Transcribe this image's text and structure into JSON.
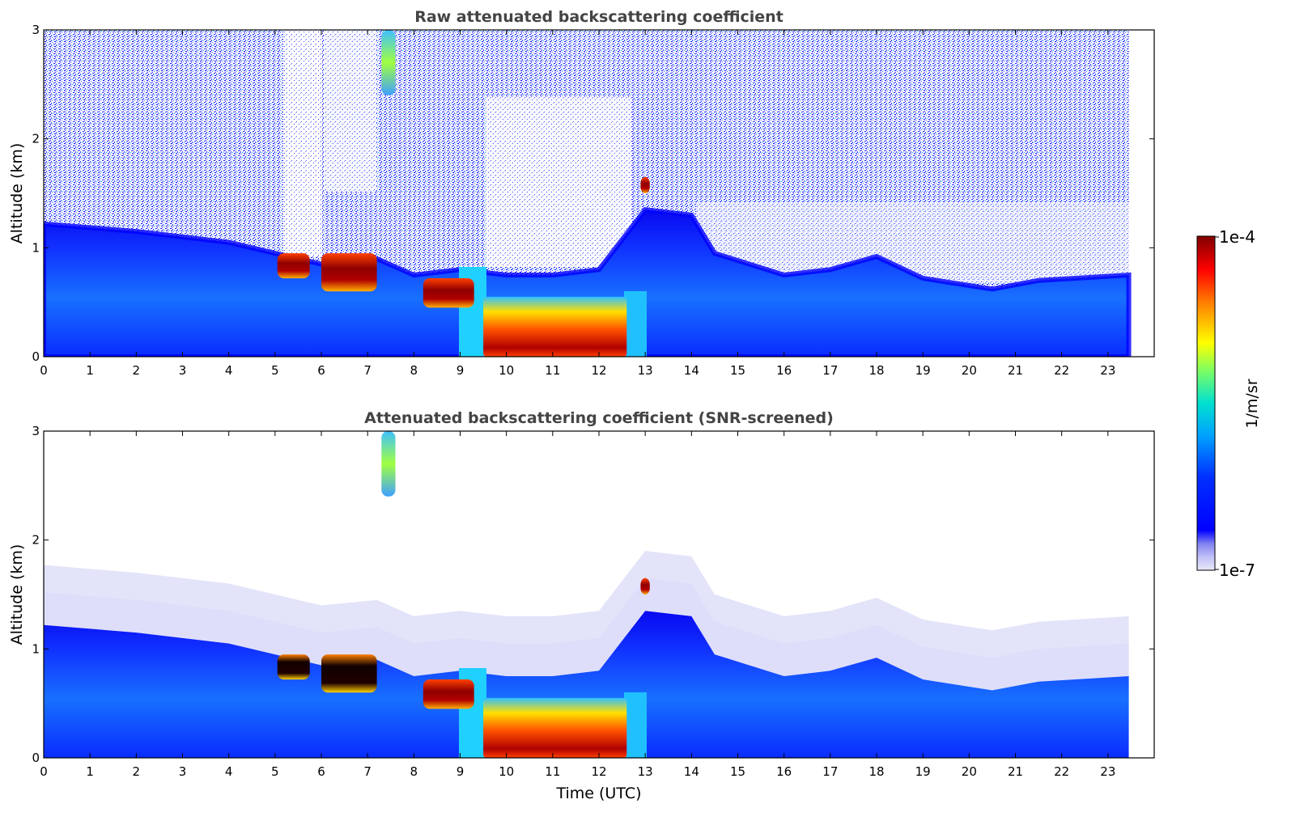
{
  "chart_data": [
    {
      "type": "heatmap",
      "title": "Raw attenuated backscattering coefficient",
      "xlabel": "",
      "ylabel": "Altitude (km)",
      "xlim": [
        0,
        24
      ],
      "ylim": [
        0,
        3
      ],
      "x_ticks": [
        "0",
        "1",
        "2",
        "3",
        "4",
        "5",
        "6",
        "7",
        "8",
        "9",
        "10",
        "11",
        "12",
        "13",
        "14",
        "15",
        "16",
        "17",
        "18",
        "19",
        "20",
        "21",
        "22",
        "23"
      ],
      "y_ticks": [
        "0",
        "1",
        "2",
        "3"
      ],
      "data_extent_x": [
        0,
        23.45
      ],
      "boundary_layer_top_km": [
        [
          0,
          1.22
        ],
        [
          2,
          1.15
        ],
        [
          4,
          1.05
        ],
        [
          5,
          0.95
        ],
        [
          6,
          0.85
        ],
        [
          7.2,
          0.9
        ],
        [
          8,
          0.75
        ],
        [
          9,
          0.8
        ],
        [
          10,
          0.75
        ],
        [
          11,
          0.75
        ],
        [
          12,
          0.8
        ],
        [
          13,
          1.35
        ],
        [
          14,
          1.3
        ],
        [
          14.5,
          0.95
        ],
        [
          16,
          0.75
        ],
        [
          17,
          0.8
        ],
        [
          18,
          0.92
        ],
        [
          19,
          0.72
        ],
        [
          20.5,
          0.62
        ],
        [
          21.5,
          0.7
        ],
        [
          23.45,
          0.75
        ]
      ],
      "features": [
        {
          "name": "cloud",
          "x": [
            5.05,
            5.75
          ],
          "y": [
            0.72,
            0.95
          ],
          "level": "max"
        },
        {
          "name": "cloud",
          "x": [
            6.0,
            7.2
          ],
          "y": [
            0.6,
            0.95
          ],
          "level": "max"
        },
        {
          "name": "cloud",
          "x": [
            8.2,
            9.3
          ],
          "y": [
            0.45,
            0.72
          ],
          "level": "high"
        },
        {
          "name": "fog",
          "x": [
            9.5,
            12.6
          ],
          "y": [
            0.0,
            0.55
          ],
          "level": "max"
        },
        {
          "name": "cloud",
          "x": [
            12.9,
            13.1
          ],
          "y": [
            1.5,
            1.65
          ],
          "level": "high"
        },
        {
          "name": "plume",
          "x": [
            7.3,
            7.6
          ],
          "y": [
            2.4,
            3.0
          ],
          "level": "mid"
        }
      ]
    },
    {
      "type": "heatmap",
      "title": "Attenuated backscattering coefficient (SNR-screened)",
      "xlabel": "Time (UTC)",
      "ylabel": "Altitude (km)",
      "xlim": [
        0,
        24
      ],
      "ylim": [
        0,
        3
      ],
      "x_ticks": [
        "0",
        "1",
        "2",
        "3",
        "4",
        "5",
        "6",
        "7",
        "8",
        "9",
        "10",
        "11",
        "12",
        "13",
        "14",
        "15",
        "16",
        "17",
        "18",
        "19",
        "20",
        "21",
        "22",
        "23"
      ],
      "y_ticks": [
        "0",
        "1",
        "2",
        "3"
      ],
      "data_extent_x": [
        0,
        23.45
      ]
    }
  ],
  "colorbar": {
    "min_label": "1e-7",
    "max_label": "1e-4",
    "label": "1/m/sr",
    "colormap": "jet",
    "colors": [
      "#e8e8f8",
      "#9a9af0",
      "#0000ff",
      "#00a0ff",
      "#00e0c0",
      "#80ff60",
      "#ffff00",
      "#ff8000",
      "#ff0000",
      "#800000"
    ]
  }
}
